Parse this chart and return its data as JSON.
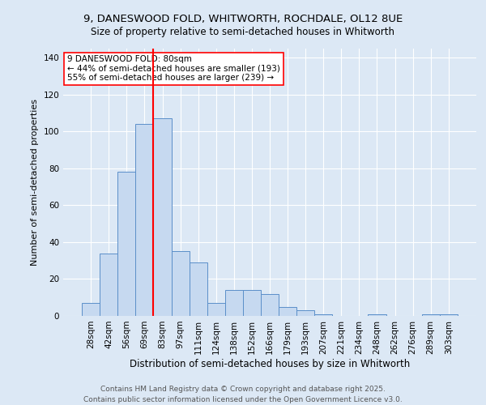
{
  "title_line1": "9, DANESWOOD FOLD, WHITWORTH, ROCHDALE, OL12 8UE",
  "title_line2": "Size of property relative to semi-detached houses in Whitworth",
  "xlabel": "Distribution of semi-detached houses by size in Whitworth",
  "ylabel": "Number of semi-detached properties",
  "bin_labels": [
    "28sqm",
    "42sqm",
    "56sqm",
    "69sqm",
    "83sqm",
    "97sqm",
    "111sqm",
    "124sqm",
    "138sqm",
    "152sqm",
    "166sqm",
    "179sqm",
    "193sqm",
    "207sqm",
    "221sqm",
    "234sqm",
    "248sqm",
    "262sqm",
    "276sqm",
    "289sqm",
    "303sqm"
  ],
  "bar_heights": [
    7,
    34,
    78,
    104,
    107,
    35,
    29,
    7,
    14,
    14,
    12,
    5,
    3,
    1,
    0,
    0,
    1,
    0,
    0,
    1,
    1
  ],
  "bar_color": "#c6d9f0",
  "bar_edge_color": "#5b8fc9",
  "red_line_x": 3.5,
  "annotation_line1": "9 DANESWOOD FOLD: 80sqm",
  "annotation_line2": "← 44% of semi-detached houses are smaller (193)",
  "annotation_line3": "55% of semi-detached houses are larger (239) →",
  "vline_color": "red",
  "ylim": [
    0,
    145
  ],
  "yticks": [
    0,
    20,
    40,
    60,
    80,
    100,
    120,
    140
  ],
  "footer_line1": "Contains HM Land Registry data © Crown copyright and database right 2025.",
  "footer_line2": "Contains public sector information licensed under the Open Government Licence v3.0.",
  "background_color": "#dce8f5",
  "plot_bg_color": "#dce8f5",
  "annotation_box_facecolor": "#ffffff",
  "annotation_box_edgecolor": "red",
  "grid_color": "#ffffff",
  "title1_fontsize": 9.5,
  "title2_fontsize": 8.5,
  "xlabel_fontsize": 8.5,
  "ylabel_fontsize": 8,
  "tick_fontsize": 7.5,
  "annotation_fontsize": 7.5,
  "footer_fontsize": 6.5
}
